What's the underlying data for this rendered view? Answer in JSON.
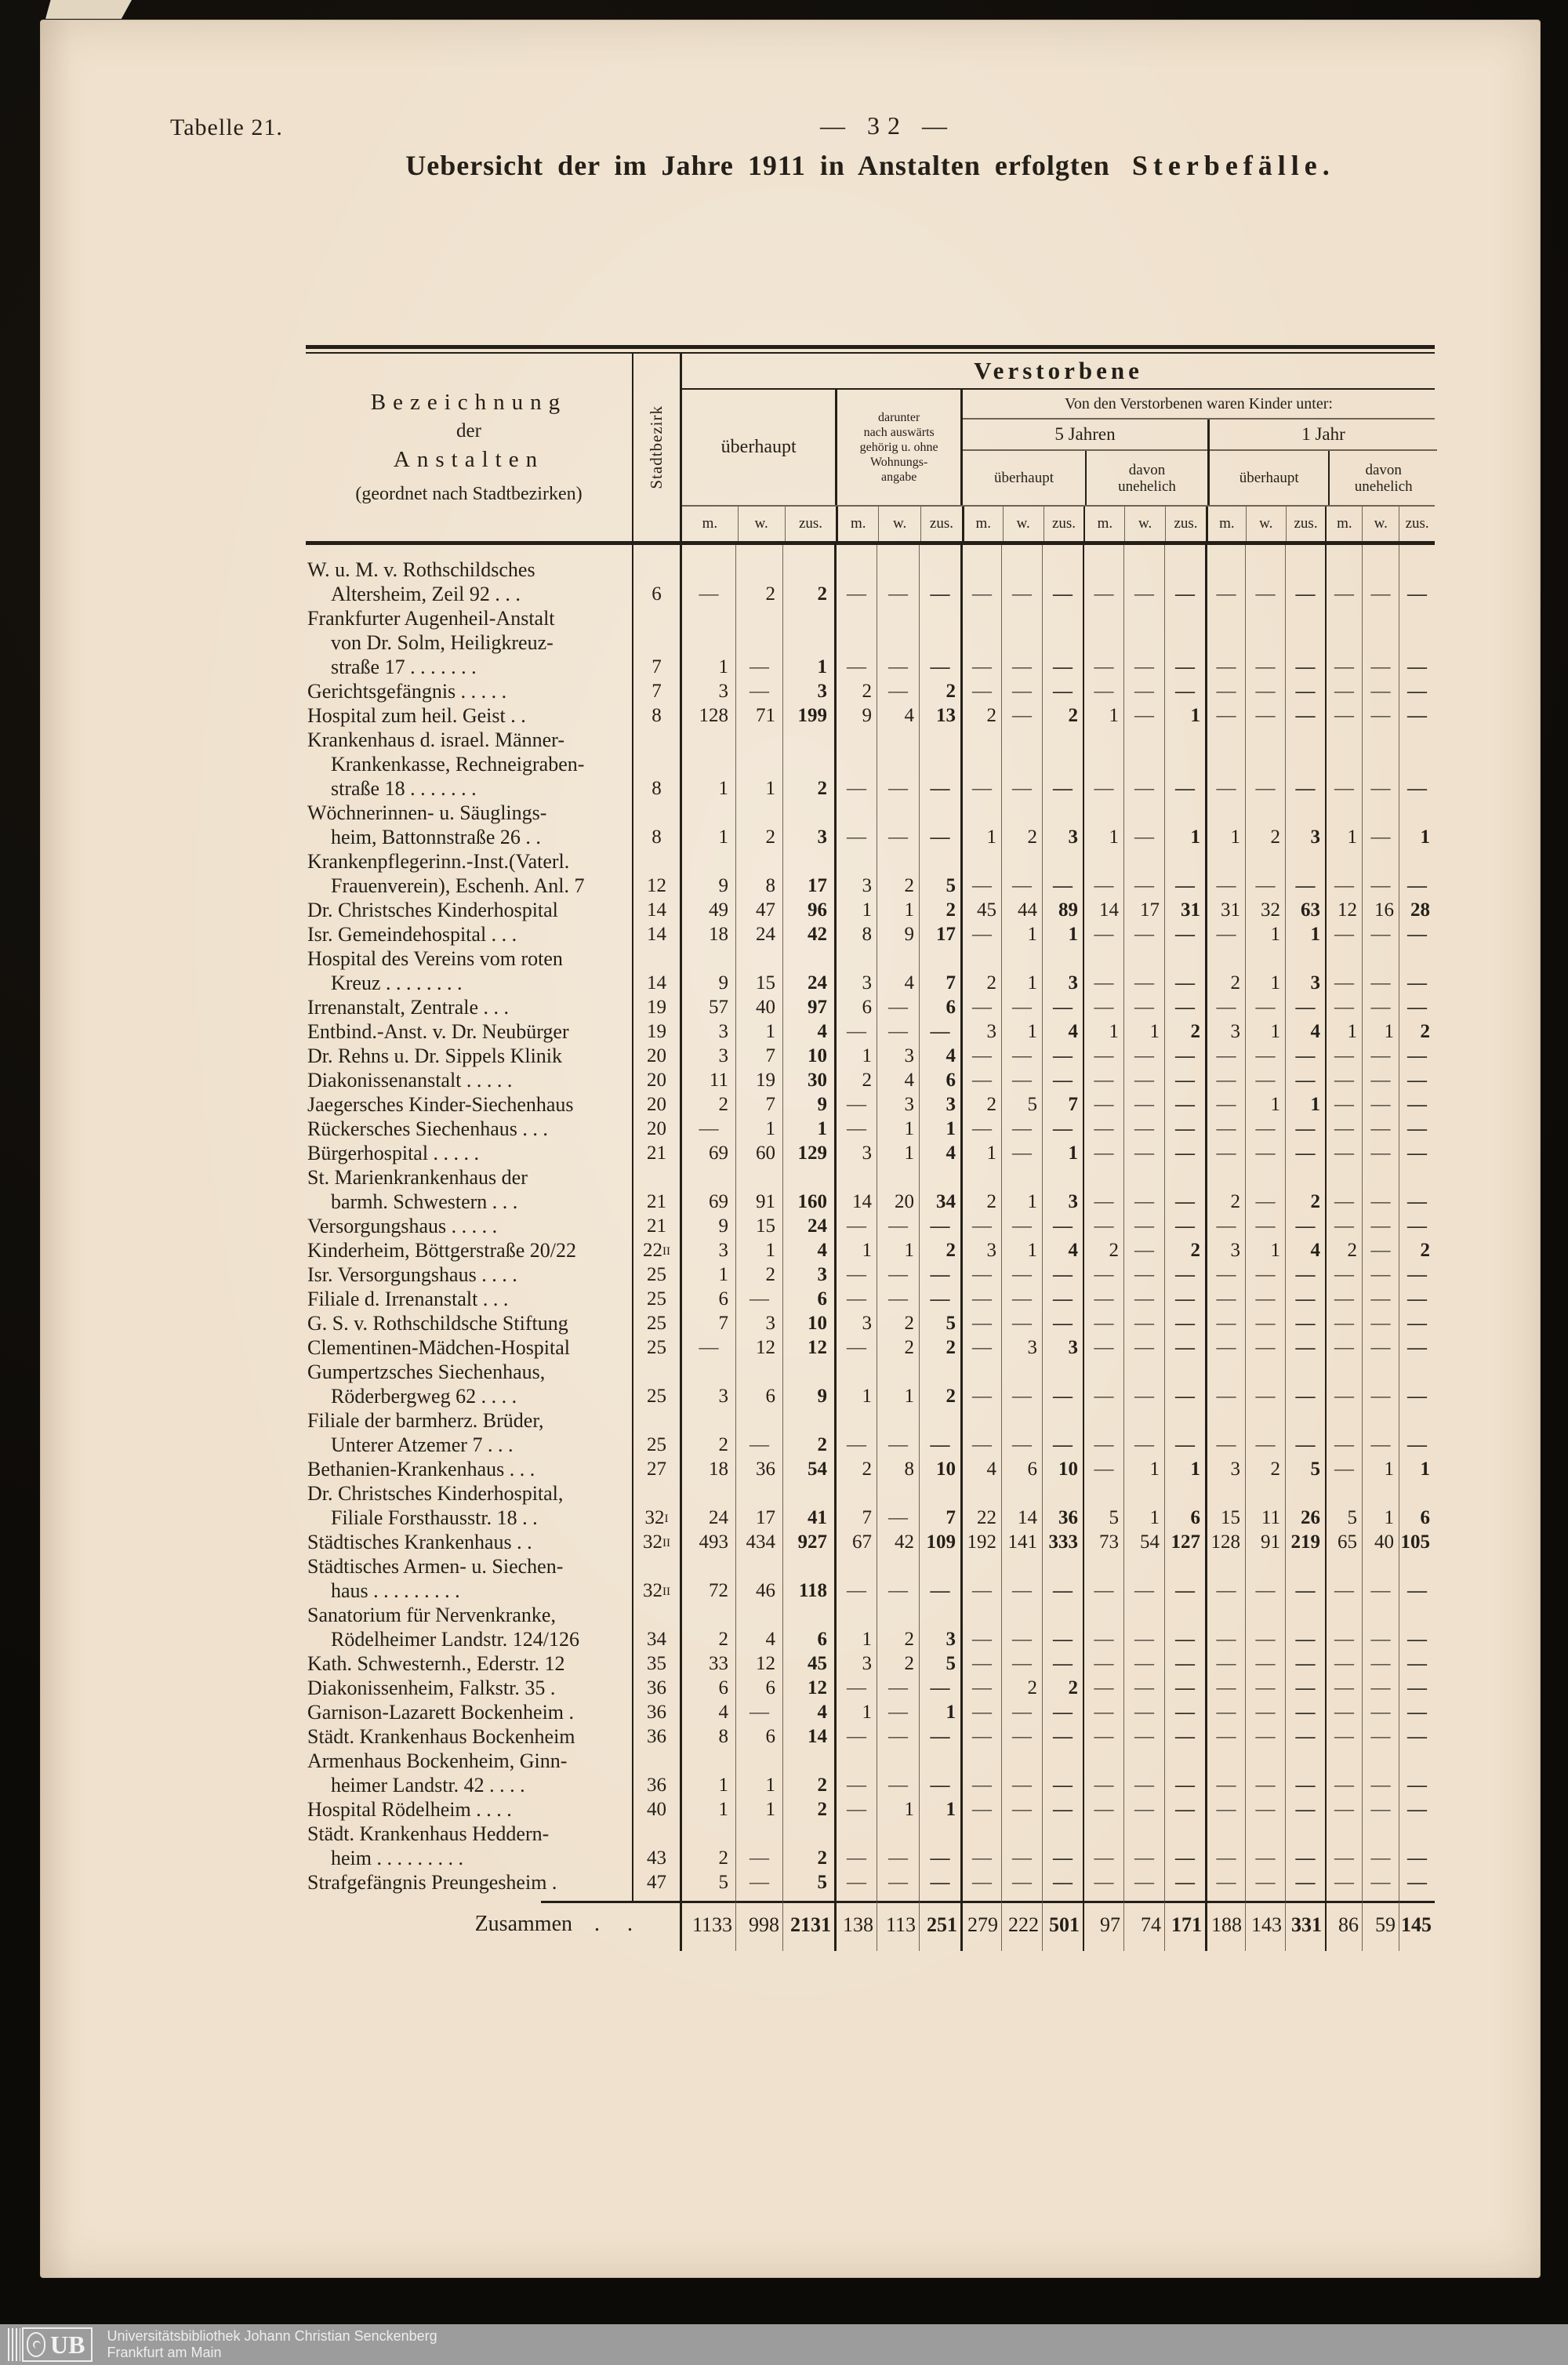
{
  "page": {
    "table_label": "Tabelle 21.",
    "page_number": "—  32  —",
    "title": "Uebersicht der im Jahre 1911 in Anstalten erfolgten",
    "title_emph": "Sterbefälle."
  },
  "header": {
    "name_lines": [
      "Bezeichnung",
      "der",
      "Anstalten",
      "(geordnet nach Stadtbezirken)"
    ],
    "district": "Stadtbezirk",
    "verstorbene": "Verstorbene",
    "ueberhaupt": "überhaupt",
    "darunter_lines": [
      "darunter",
      "nach auswärts",
      "gehörig u. ohne",
      "Wohnungs-",
      "angabe"
    ],
    "kinder_title": "Von den Verstorbenen waren Kinder unter:",
    "five_years": "5 Jahren",
    "one_year": "1 Jahr",
    "sub_ueberhaupt": "überhaupt",
    "sub_unehelich_lines": [
      "davon",
      "unehelich"
    ],
    "m": "m.",
    "w": "w.",
    "zus": "zus."
  },
  "rows": [
    {
      "name": [
        "W. u. M. v. Rothschildsches",
        "Altersheim, Zeil 92  .   .   ."
      ],
      "district": "6",
      "district_sup": "",
      "values": [
        "—",
        "2",
        "2",
        "—",
        "—",
        "—",
        "—",
        "—",
        "—",
        "—",
        "—",
        "—",
        "—",
        "—",
        "—",
        "—",
        "—",
        "—"
      ]
    },
    {
      "name": [
        "Frankfurter Augenheil-Anstalt",
        "von Dr. Solm, Heiligkreuz-",
        "straße 17 .   .   .   .   .   .   ."
      ],
      "district": "7",
      "district_sup": "",
      "values": [
        "1",
        "—",
        "1",
        "—",
        "—",
        "—",
        "—",
        "—",
        "—",
        "—",
        "—",
        "—",
        "—",
        "—",
        "—",
        "—",
        "—",
        "—"
      ]
    },
    {
      "name": [
        "Gerichtsgefängnis .   .   .   .   ."
      ],
      "district": "7",
      "district_sup": "",
      "values": [
        "3",
        "—",
        "3",
        "2",
        "—",
        "2",
        "—",
        "—",
        "—",
        "—",
        "—",
        "—",
        "—",
        "—",
        "—",
        "—",
        "—",
        "—"
      ]
    },
    {
      "name": [
        "Hospital zum heil. Geist   .   ."
      ],
      "district": "8",
      "district_sup": "",
      "values": [
        "128",
        "71",
        "199",
        "9",
        "4",
        "13",
        "2",
        "—",
        "2",
        "1",
        "—",
        "1",
        "—",
        "—",
        "—",
        "—",
        "—",
        "—"
      ]
    },
    {
      "name": [
        "Krankenhaus d. israel. Männer-",
        "Krankenkasse, Rechneigraben-",
        "straße 18 .   .   .   .   .   .   ."
      ],
      "district": "8",
      "district_sup": "",
      "values": [
        "1",
        "1",
        "2",
        "—",
        "—",
        "—",
        "—",
        "—",
        "—",
        "—",
        "—",
        "—",
        "—",
        "—",
        "—",
        "—",
        "—",
        "—"
      ]
    },
    {
      "name": [
        "Wöchnerinnen- u. Säuglings-",
        "heim, Battonnstraße 26  .   ."
      ],
      "district": "8",
      "district_sup": "",
      "values": [
        "1",
        "2",
        "3",
        "—",
        "—",
        "—",
        "1",
        "2",
        "3",
        "1",
        "—",
        "1",
        "1",
        "2",
        "3",
        "1",
        "—",
        "1"
      ]
    },
    {
      "name": [
        "Krankenpflegerinn.-Inst.(Vaterl.",
        "Frauenverein), Eschenh. Anl. 7"
      ],
      "district": "12",
      "district_sup": "",
      "values": [
        "9",
        "8",
        "17",
        "3",
        "2",
        "5",
        "—",
        "—",
        "—",
        "—",
        "—",
        "—",
        "—",
        "—",
        "—",
        "—",
        "—",
        "—"
      ]
    },
    {
      "name": [
        "Dr. Christsches Kinderhospital"
      ],
      "district": "14",
      "district_sup": "",
      "values": [
        "49",
        "47",
        "96",
        "1",
        "1",
        "2",
        "45",
        "44",
        "89",
        "14",
        "17",
        "31",
        "31",
        "32",
        "63",
        "12",
        "16",
        "28"
      ]
    },
    {
      "name": [
        "Isr.  Gemeindehospital .   .   ."
      ],
      "district": "14",
      "district_sup": "",
      "values": [
        "18",
        "24",
        "42",
        "8",
        "9",
        "17",
        "—",
        "1",
        "1",
        "—",
        "—",
        "—",
        "—",
        "1",
        "1",
        "—",
        "—",
        "—"
      ]
    },
    {
      "name": [
        "Hospital des Vereins vom roten",
        "Kreuz  .   .   .   .   .   .   .   ."
      ],
      "district": "14",
      "district_sup": "",
      "values": [
        "9",
        "15",
        "24",
        "3",
        "4",
        "7",
        "2",
        "1",
        "3",
        "—",
        "—",
        "—",
        "2",
        "1",
        "3",
        "—",
        "—",
        "—"
      ]
    },
    {
      "name": [
        "Irrenanstalt, Zentrale  .   .   ."
      ],
      "district": "19",
      "district_sup": "",
      "values": [
        "57",
        "40",
        "97",
        "6",
        "—",
        "6",
        "—",
        "—",
        "—",
        "—",
        "—",
        "—",
        "—",
        "—",
        "—",
        "—",
        "—",
        "—"
      ]
    },
    {
      "name": [
        "Entbind.-Anst. v. Dr. Neubürger"
      ],
      "district": "19",
      "district_sup": "",
      "values": [
        "3",
        "1",
        "4",
        "—",
        "—",
        "—",
        "3",
        "1",
        "4",
        "1",
        "1",
        "2",
        "3",
        "1",
        "4",
        "1",
        "1",
        "2"
      ]
    },
    {
      "name": [
        "Dr. Rehns u. Dr. Sippels Klinik"
      ],
      "district": "20",
      "district_sup": "",
      "values": [
        "3",
        "7",
        "10",
        "1",
        "3",
        "4",
        "—",
        "—",
        "—",
        "—",
        "—",
        "—",
        "—",
        "—",
        "—",
        "—",
        "—",
        "—"
      ]
    },
    {
      "name": [
        "Diakonissenanstalt .   .   .   .   ."
      ],
      "district": "20",
      "district_sup": "",
      "values": [
        "11",
        "19",
        "30",
        "2",
        "4",
        "6",
        "—",
        "—",
        "—",
        "—",
        "—",
        "—",
        "—",
        "—",
        "—",
        "—",
        "—",
        "—"
      ]
    },
    {
      "name": [
        "Jaegersches Kinder-Siechenhaus"
      ],
      "district": "20",
      "district_sup": "",
      "values": [
        "2",
        "7",
        "9",
        "—",
        "3",
        "3",
        "2",
        "5",
        "7",
        "—",
        "—",
        "—",
        "—",
        "1",
        "1",
        "—",
        "—",
        "—"
      ]
    },
    {
      "name": [
        "Rückersches Siechenhaus .   .   ."
      ],
      "district": "20",
      "district_sup": "",
      "values": [
        "—",
        "1",
        "1",
        "—",
        "1",
        "1",
        "—",
        "—",
        "—",
        "—",
        "—",
        "—",
        "—",
        "—",
        "—",
        "—",
        "—",
        "—"
      ]
    },
    {
      "name": [
        "Bürgerhospital    .   .   .   .   ."
      ],
      "district": "21",
      "district_sup": "",
      "values": [
        "69",
        "60",
        "129",
        "3",
        "1",
        "4",
        "1",
        "—",
        "1",
        "—",
        "—",
        "—",
        "—",
        "—",
        "—",
        "—",
        "—",
        "—"
      ]
    },
    {
      "name": [
        "St.  Marienkrankenhaus  der",
        "barmh. Schwestern    .   .   ."
      ],
      "district": "21",
      "district_sup": "",
      "values": [
        "69",
        "91",
        "160",
        "14",
        "20",
        "34",
        "2",
        "1",
        "3",
        "—",
        "—",
        "—",
        "2",
        "—",
        "2",
        "—",
        "—",
        "—"
      ]
    },
    {
      "name": [
        "Versorgungshaus  .   .   .   .   ."
      ],
      "district": "21",
      "district_sup": "",
      "values": [
        "9",
        "15",
        "24",
        "—",
        "—",
        "—",
        "—",
        "—",
        "—",
        "—",
        "—",
        "—",
        "—",
        "—",
        "—",
        "—",
        "—",
        "—"
      ]
    },
    {
      "name": [
        "Kinderheim, Böttgerstraße 20/22"
      ],
      "district": "22",
      "district_sup": "II",
      "values": [
        "3",
        "1",
        "4",
        "1",
        "1",
        "2",
        "3",
        "1",
        "4",
        "2",
        "—",
        "2",
        "3",
        "1",
        "4",
        "2",
        "—",
        "2"
      ]
    },
    {
      "name": [
        "Isr. Versorgungshaus  .   .   .   ."
      ],
      "district": "25",
      "district_sup": "",
      "values": [
        "1",
        "2",
        "3",
        "—",
        "—",
        "—",
        "—",
        "—",
        "—",
        "—",
        "—",
        "—",
        "—",
        "—",
        "—",
        "—",
        "—",
        "—"
      ]
    },
    {
      "name": [
        "Filiale d. Irrenanstalt  .   .   ."
      ],
      "district": "25",
      "district_sup": "",
      "values": [
        "6",
        "—",
        "6",
        "—",
        "—",
        "—",
        "—",
        "—",
        "—",
        "—",
        "—",
        "—",
        "—",
        "—",
        "—",
        "—",
        "—",
        "—"
      ]
    },
    {
      "name": [
        "G. S. v. Rothschildsche Stiftung"
      ],
      "district": "25",
      "district_sup": "",
      "values": [
        "7",
        "3",
        "10",
        "3",
        "2",
        "5",
        "—",
        "—",
        "—",
        "—",
        "—",
        "—",
        "—",
        "—",
        "—",
        "—",
        "—",
        "—"
      ]
    },
    {
      "name": [
        "Clementinen-Mädchen-Hospital"
      ],
      "district": "25",
      "district_sup": "",
      "values": [
        "—",
        "12",
        "12",
        "—",
        "2",
        "2",
        "—",
        "3",
        "3",
        "—",
        "—",
        "—",
        "—",
        "—",
        "—",
        "—",
        "—",
        "—"
      ]
    },
    {
      "name": [
        "Gumpertzsches Siechenhaus,",
        "Röderbergweg 62  .   .   .   ."
      ],
      "district": "25",
      "district_sup": "",
      "values": [
        "3",
        "6",
        "9",
        "1",
        "1",
        "2",
        "—",
        "—",
        "—",
        "—",
        "—",
        "—",
        "—",
        "—",
        "—",
        "—",
        "—",
        "—"
      ]
    },
    {
      "name": [
        "Filiale der barmherz. Brüder,",
        "Unterer Atzemer 7    .   .   ."
      ],
      "district": "25",
      "district_sup": "",
      "values": [
        "2",
        "—",
        "2",
        "—",
        "—",
        "—",
        "—",
        "—",
        "—",
        "—",
        "—",
        "—",
        "—",
        "—",
        "—",
        "—",
        "—",
        "—"
      ]
    },
    {
      "name": [
        "Bethanien-Krankenhaus .   .   ."
      ],
      "district": "27",
      "district_sup": "",
      "values": [
        "18",
        "36",
        "54",
        "2",
        "8",
        "10",
        "4",
        "6",
        "10",
        "—",
        "1",
        "1",
        "3",
        "2",
        "5",
        "—",
        "1",
        "1"
      ]
    },
    {
      "name": [
        "Dr. Christsches Kinderhospital,",
        "Filiale Forsthausstr. 18  .   ."
      ],
      "district": "32",
      "district_sup": "I",
      "values": [
        "24",
        "17",
        "41",
        "7",
        "—",
        "7",
        "22",
        "14",
        "36",
        "5",
        "1",
        "6",
        "15",
        "11",
        "26",
        "5",
        "1",
        "6"
      ]
    },
    {
      "name": [
        "Städtisches Krankenhaus   .   ."
      ],
      "district": "32",
      "district_sup": "II",
      "values": [
        "493",
        "434",
        "927",
        "67",
        "42",
        "109",
        "192",
        "141",
        "333",
        "73",
        "54",
        "127",
        "128",
        "91",
        "219",
        "65",
        "40",
        "105"
      ]
    },
    {
      "name": [
        "Städtisches Armen- u. Siechen-",
        "haus   .   .   .   .   .   .   .   .   ."
      ],
      "district": "32",
      "district_sup": "II",
      "values": [
        "72",
        "46",
        "118",
        "—",
        "—",
        "—",
        "—",
        "—",
        "—",
        "—",
        "—",
        "—",
        "—",
        "—",
        "—",
        "—",
        "—",
        "—"
      ]
    },
    {
      "name": [
        "Sanatorium für Nervenkranke,",
        "Rödelheimer Landstr. 124/126"
      ],
      "district": "34",
      "district_sup": "",
      "values": [
        "2",
        "4",
        "6",
        "1",
        "2",
        "3",
        "—",
        "—",
        "—",
        "—",
        "—",
        "—",
        "—",
        "—",
        "—",
        "—",
        "—",
        "—"
      ]
    },
    {
      "name": [
        "Kath. Schwesternh., Ederstr. 12"
      ],
      "district": "35",
      "district_sup": "",
      "values": [
        "33",
        "12",
        "45",
        "3",
        "2",
        "5",
        "—",
        "—",
        "—",
        "—",
        "—",
        "—",
        "—",
        "—",
        "—",
        "—",
        "—",
        "—"
      ]
    },
    {
      "name": [
        "Diakonissenheim, Falkstr. 35  ."
      ],
      "district": "36",
      "district_sup": "",
      "values": [
        "6",
        "6",
        "12",
        "—",
        "—",
        "—",
        "—",
        "2",
        "2",
        "—",
        "—",
        "—",
        "—",
        "—",
        "—",
        "—",
        "—",
        "—"
      ]
    },
    {
      "name": [
        "Garnison-Lazarett Bockenheim ."
      ],
      "district": "36",
      "district_sup": "",
      "values": [
        "4",
        "—",
        "4",
        "1",
        "—",
        "1",
        "—",
        "—",
        "—",
        "—",
        "—",
        "—",
        "—",
        "—",
        "—",
        "—",
        "—",
        "—"
      ]
    },
    {
      "name": [
        "Städt. Krankenhaus Bockenheim"
      ],
      "district": "36",
      "district_sup": "",
      "values": [
        "8",
        "6",
        "14",
        "—",
        "—",
        "—",
        "—",
        "—",
        "—",
        "—",
        "—",
        "—",
        "—",
        "—",
        "—",
        "—",
        "—",
        "—"
      ]
    },
    {
      "name": [
        "Armenhaus Bockenheim, Ginn-",
        "heimer Landstr. 42   .   .   .   ."
      ],
      "district": "36",
      "district_sup": "",
      "values": [
        "1",
        "1",
        "2",
        "—",
        "—",
        "—",
        "—",
        "—",
        "—",
        "—",
        "—",
        "—",
        "—",
        "—",
        "—",
        "—",
        "—",
        "—"
      ]
    },
    {
      "name": [
        "Hospital Rödelheim  .   .   .   ."
      ],
      "district": "40",
      "district_sup": "",
      "values": [
        "1",
        "1",
        "2",
        "—",
        "1",
        "1",
        "—",
        "—",
        "—",
        "—",
        "—",
        "—",
        "—",
        "—",
        "—",
        "—",
        "—",
        "—"
      ]
    },
    {
      "name": [
        "Städt. Krankenhaus Heddern-",
        "heim   .   .   .   .   .   .   .   .   ."
      ],
      "district": "43",
      "district_sup": "",
      "values": [
        "2",
        "—",
        "2",
        "—",
        "—",
        "—",
        "—",
        "—",
        "—",
        "—",
        "—",
        "—",
        "—",
        "—",
        "—",
        "—",
        "—",
        "—"
      ]
    },
    {
      "name": [
        "Strafgefängnis Preungesheim ."
      ],
      "district": "47",
      "district_sup": "",
      "values": [
        "5",
        "—",
        "5",
        "—",
        "—",
        "—",
        "—",
        "—",
        "—",
        "—",
        "—",
        "—",
        "—",
        "—",
        "—",
        "—",
        "—",
        "—"
      ]
    }
  ],
  "total": {
    "label": "Zusammen",
    "dots": ". .",
    "values": [
      "1133",
      "998",
      "2131",
      "138",
      "113",
      "251",
      "279",
      "222",
      "501",
      "97",
      "74",
      "171",
      "188",
      "143",
      "331",
      "86",
      "59",
      "145"
    ]
  },
  "footer": {
    "logo": "UB",
    "line1": "Universitätsbibliothek Johann Christian Senckenberg",
    "line2": "Frankfurt am Main"
  }
}
